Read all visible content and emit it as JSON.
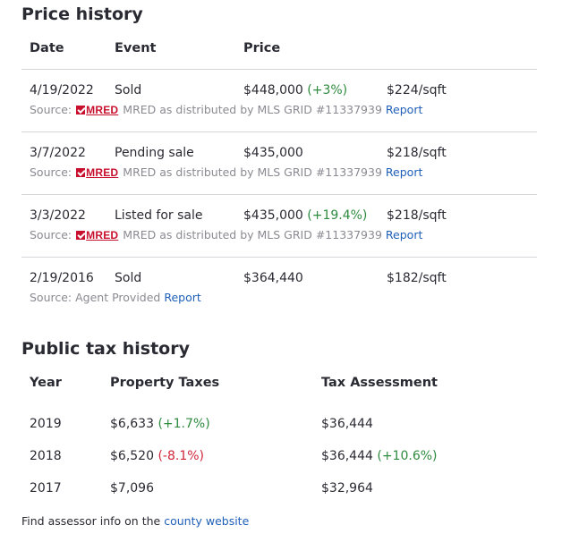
{
  "price_history": {
    "title": "Price history",
    "headers": {
      "date": "Date",
      "event": "Event",
      "price": "Price"
    },
    "rows": [
      {
        "date": "4/19/2022",
        "event": "Sold",
        "price": "$448,000",
        "change": "(+3%)",
        "change_dir": "pos",
        "per_sqft": "$224/sqft",
        "source_prefix": "Source:",
        "source_logo": "MRED",
        "source_text": "MRED as distributed by MLS GRID #11337939",
        "report": "Report"
      },
      {
        "date": "3/7/2022",
        "event": "Pending sale",
        "price": "$435,000",
        "change": "",
        "change_dir": "",
        "per_sqft": "$218/sqft",
        "source_prefix": "Source:",
        "source_logo": "MRED",
        "source_text": "MRED as distributed by MLS GRID #11337939",
        "report": "Report"
      },
      {
        "date": "3/3/2022",
        "event": "Listed for sale",
        "price": "$435,000",
        "change": "(+19.4%)",
        "change_dir": "pos",
        "per_sqft": "$218/sqft",
        "source_prefix": "Source:",
        "source_logo": "MRED",
        "source_text": "MRED as distributed by MLS GRID #11337939",
        "report": "Report"
      },
      {
        "date": "2/19/2016",
        "event": "Sold",
        "price": "$364,440",
        "change": "",
        "change_dir": "",
        "per_sqft": "$182/sqft",
        "source_prefix": "Source: Agent Provided",
        "source_logo": "",
        "source_text": "",
        "report": "Report"
      }
    ]
  },
  "tax_history": {
    "title": "Public tax history",
    "headers": {
      "year": "Year",
      "taxes": "Property Taxes",
      "assessment": "Tax Assessment"
    },
    "rows": [
      {
        "year": "2019",
        "taxes": "$6,633",
        "taxes_change": "(+1.7%)",
        "taxes_dir": "pos",
        "assessment": "$36,444",
        "assessment_change": "",
        "assessment_dir": ""
      },
      {
        "year": "2018",
        "taxes": "$6,520",
        "taxes_change": "(-8.1%)",
        "taxes_dir": "neg",
        "assessment": "$36,444",
        "assessment_change": "(+10.6%)",
        "assessment_dir": "pos"
      },
      {
        "year": "2017",
        "taxes": "$7,096",
        "taxes_change": "",
        "taxes_dir": "",
        "assessment": "$32,964",
        "assessment_change": "",
        "assessment_dir": ""
      }
    ]
  },
  "footer": {
    "text": "Find assessor info on the",
    "link": "county website"
  },
  "colors": {
    "positive": "#2e8a3f",
    "negative": "#d0263a",
    "link": "#1f5fb8",
    "mred_brand": "#c8102e"
  }
}
